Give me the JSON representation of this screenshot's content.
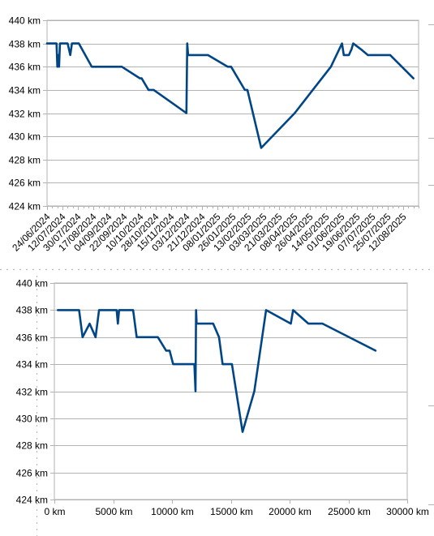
{
  "chart_data": [
    {
      "type": "line",
      "title": "",
      "xlabel": "",
      "ylabel": "",
      "ylim": [
        424,
        440
      ],
      "y_ticks": [
        "424 km",
        "426 km",
        "428 km",
        "430 km",
        "432 km",
        "434 km",
        "436 km",
        "438 km",
        "440 km"
      ],
      "x_tick_labels": [
        "24/06/2024",
        "12/07/2024",
        "30/07/2024",
        "17/08/2024",
        "04/09/2024",
        "22/09/2024",
        "10/10/2024",
        "28/10/2024",
        "15/11/2024",
        "03/12/2024",
        "21/12/2024",
        "08/01/2025",
        "26/01/2025",
        "13/02/2025",
        "03/03/2025",
        "21/03/2025",
        "08/04/2025",
        "26/04/2025",
        "14/05/2025",
        "01/06/2025",
        "19/06/2025",
        "07/07/2025",
        "25/07/2025",
        "12/08/2025"
      ],
      "x_dates": [
        "2024-06-24",
        "2024-07-05",
        "2024-07-06",
        "2024-07-07",
        "2024-07-08",
        "2024-07-09",
        "2024-07-11",
        "2024-07-18",
        "2024-07-21",
        "2024-07-23",
        "2024-07-31",
        "2024-08-15",
        "2024-08-24",
        "2024-09-13",
        "2024-09-19",
        "2024-10-10",
        "2024-10-12",
        "2024-10-20",
        "2024-10-26",
        "2024-12-03",
        "2024-12-04",
        "2024-12-05",
        "2024-12-28",
        "2025-01-20",
        "2025-01-24",
        "2025-02-09",
        "2025-02-12",
        "2025-02-28",
        "2025-04-08",
        "2025-05-20",
        "2025-06-02",
        "2025-06-04",
        "2025-06-10",
        "2025-06-13",
        "2025-06-15",
        "2025-06-24",
        "2025-07-02",
        "2025-07-28",
        "2025-08-24"
      ],
      "series": [
        {
          "color": "#004586",
          "values": [
            438,
            438,
            436,
            437,
            436,
            438,
            438,
            438,
            437,
            438,
            438,
            436,
            436,
            436,
            436,
            435,
            435,
            434,
            434,
            432,
            438,
            437,
            437,
            436,
            436,
            434,
            434,
            429,
            432,
            436,
            438,
            437,
            437,
            437.5,
            438,
            437.5,
            437,
            437,
            435
          ]
        }
      ],
      "grid": true
    },
    {
      "type": "line",
      "title": "",
      "xlabel": "",
      "ylabel": "",
      "ylim": [
        424,
        440
      ],
      "xlim": [
        0,
        30000
      ],
      "y_ticks": [
        "424 km",
        "426 km",
        "428 km",
        "430 km",
        "432 km",
        "434 km",
        "436 km",
        "438 km",
        "440 km"
      ],
      "x_ticks": [
        "0 km",
        "5000 km",
        "10000 km",
        "15000 km",
        "20000 km",
        "25000 km",
        "30000 km"
      ],
      "x_values": [
        300,
        2100,
        2400,
        3000,
        3500,
        3800,
        5300,
        5400,
        5500,
        6700,
        7000,
        8800,
        9500,
        9800,
        10100,
        11900,
        12000,
        12050,
        12100,
        12150,
        13500,
        14000,
        14300,
        15100,
        16000,
        17000,
        18000,
        20100,
        20300,
        21600,
        22000,
        22800,
        27300
      ],
      "series": [
        {
          "color": "#004586",
          "values": [
            438,
            438,
            436,
            437,
            436,
            438,
            438,
            437,
            438,
            438,
            436,
            436,
            435,
            435,
            434,
            434,
            432,
            438,
            437,
            437,
            437,
            436,
            434,
            434,
            429,
            432,
            438,
            437,
            438,
            437,
            437,
            437,
            435
          ]
        }
      ],
      "grid": true
    }
  ]
}
